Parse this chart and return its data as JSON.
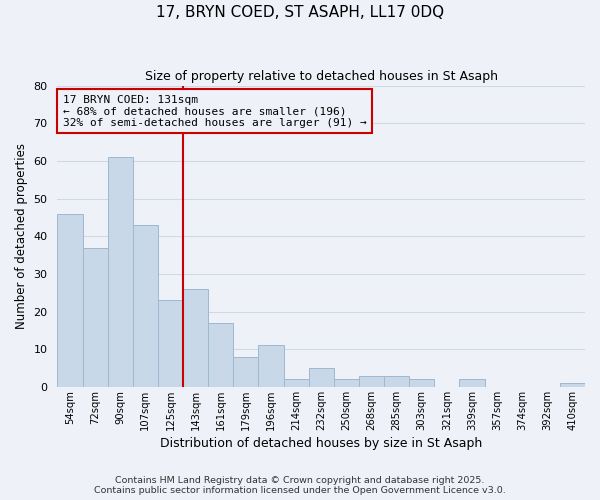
{
  "title": "17, BRYN COED, ST ASAPH, LL17 0DQ",
  "subtitle": "Size of property relative to detached houses in St Asaph",
  "xlabel": "Distribution of detached houses by size in St Asaph",
  "ylabel": "Number of detached properties",
  "categories": [
    "54sqm",
    "72sqm",
    "90sqm",
    "107sqm",
    "125sqm",
    "143sqm",
    "161sqm",
    "179sqm",
    "196sqm",
    "214sqm",
    "232sqm",
    "250sqm",
    "268sqm",
    "285sqm",
    "303sqm",
    "321sqm",
    "339sqm",
    "357sqm",
    "374sqm",
    "392sqm",
    "410sqm"
  ],
  "values": [
    46,
    37,
    61,
    43,
    23,
    26,
    17,
    8,
    11,
    2,
    5,
    2,
    3,
    3,
    2,
    0,
    2,
    0,
    0,
    0,
    1
  ],
  "bar_color": "#c8d8e8",
  "bar_edgecolor": "#a0b8d0",
  "reference_line_index": 4,
  "reference_line_color": "#cc0000",
  "annotation_title": "17 BRYN COED: 131sqm",
  "annotation_line1": "← 68% of detached houses are smaller (196)",
  "annotation_line2": "32% of semi-detached houses are larger (91) →",
  "annotation_box_edgecolor": "#cc0000",
  "ylim": [
    0,
    80
  ],
  "grid_color": "#d0d8e8",
  "background_color": "#eef2f8",
  "footer1": "Contains HM Land Registry data © Crown copyright and database right 2025.",
  "footer2": "Contains public sector information licensed under the Open Government Licence v3.0."
}
